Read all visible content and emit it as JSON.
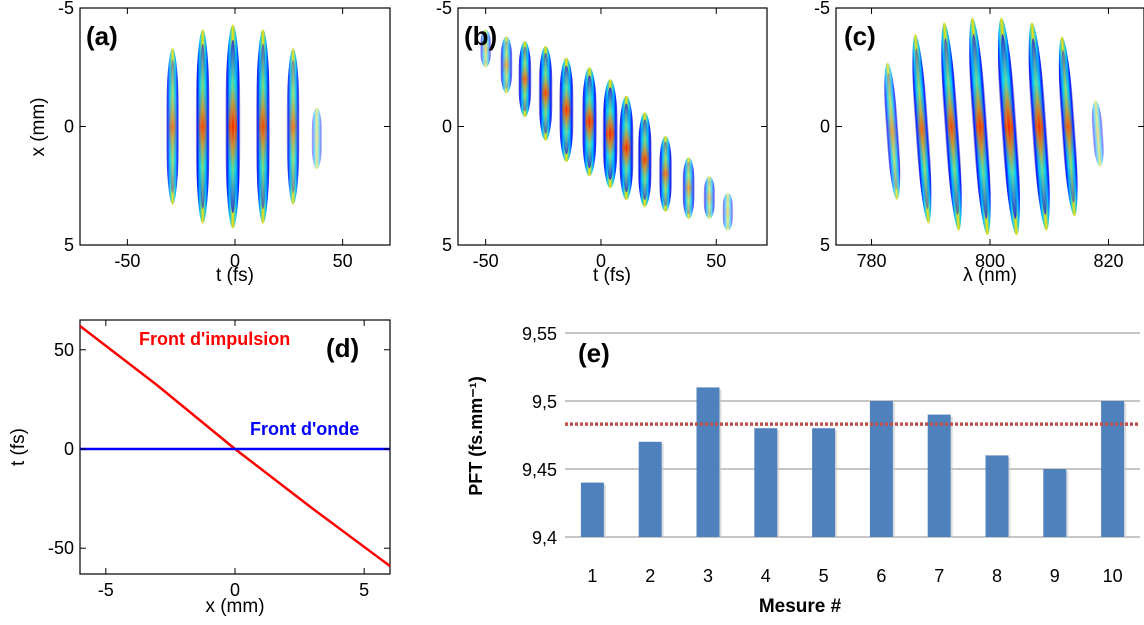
{
  "colors": {
    "red_front": "#ff0000",
    "blue_front": "#0000ff",
    "bar_fill": "#4f81bd",
    "mean_line": "#c0504d",
    "grid": "#8c8c8c"
  },
  "chart_data": [
    {
      "id": "a",
      "panel_label": "(a)",
      "type": "heatmap",
      "xlabel": "t (fs)",
      "ylabel": "x (mm)",
      "xlim": [
        -72,
        72
      ],
      "ylim": [
        -5,
        5
      ],
      "y_reversed": true,
      "xticks": [
        -50,
        0,
        50
      ],
      "yticks": [
        -5,
        0,
        5
      ],
      "xtick_labels": [
        "-50",
        "0",
        "50"
      ],
      "ytick_labels": [
        "-5",
        "0",
        "5"
      ],
      "fringes": [
        {
          "t": -29,
          "x": 0,
          "half_height": 3.3,
          "intensity": 0.55,
          "curve": 0
        },
        {
          "t": -15,
          "x": 0,
          "half_height": 4.1,
          "intensity": 0.72,
          "curve": 0
        },
        {
          "t": -1,
          "x": 0,
          "half_height": 4.3,
          "intensity": 0.92,
          "curve": 0
        },
        {
          "t": 13,
          "x": 0,
          "half_height": 4.1,
          "intensity": 0.72,
          "curve": 0
        },
        {
          "t": 27,
          "x": 0,
          "half_height": 3.3,
          "intensity": 0.55,
          "curve": 0
        },
        {
          "t": 38,
          "x": 0.5,
          "half_height": 1.3,
          "intensity": 0.15,
          "curve": 0
        }
      ]
    },
    {
      "id": "b",
      "panel_label": "(b)",
      "type": "heatmap",
      "xlabel": "t (fs)",
      "ylabel": "",
      "xlim": [
        -62,
        72
      ],
      "ylim": [
        -5,
        5
      ],
      "y_reversed": true,
      "xticks": [
        -50,
        0,
        50
      ],
      "yticks": [
        -5,
        0,
        5
      ],
      "xtick_labels": [
        "-50",
        "0",
        "50"
      ],
      "ytick_labels": [
        "-5",
        "0",
        "5"
      ],
      "fringes": [
        {
          "t": -50,
          "x": -3.3,
          "half_height": 0.8,
          "intensity": 0.25,
          "curve": 0
        },
        {
          "t": -41,
          "x": -2.6,
          "half_height": 1.2,
          "intensity": 0.42,
          "curve": 0
        },
        {
          "t": -33,
          "x": -2.0,
          "half_height": 1.6,
          "intensity": 0.6,
          "curve": 0
        },
        {
          "t": -24,
          "x": -1.4,
          "half_height": 2.0,
          "intensity": 0.72,
          "curve": 0
        },
        {
          "t": -15,
          "x": -0.7,
          "half_height": 2.2,
          "intensity": 0.82,
          "curve": 0
        },
        {
          "t": -5,
          "x": -0.2,
          "half_height": 2.3,
          "intensity": 0.9,
          "curve": 0
        },
        {
          "t": 4,
          "x": 0.3,
          "half_height": 2.3,
          "intensity": 0.95,
          "curve": 0
        },
        {
          "t": 11,
          "x": 0.9,
          "half_height": 2.2,
          "intensity": 0.85,
          "curve": 0
        },
        {
          "t": 19,
          "x": 1.4,
          "half_height": 2.0,
          "intensity": 0.75,
          "curve": 0
        },
        {
          "t": 28,
          "x": 2.0,
          "half_height": 1.6,
          "intensity": 0.58,
          "curve": 0
        },
        {
          "t": 38,
          "x": 2.6,
          "half_height": 1.3,
          "intensity": 0.45,
          "curve": 0
        },
        {
          "t": 47,
          "x": 3.0,
          "half_height": 0.9,
          "intensity": 0.32,
          "curve": 0
        },
        {
          "t": 55,
          "x": 3.6,
          "half_height": 0.8,
          "intensity": 0.2,
          "curve": 0
        }
      ]
    },
    {
      "id": "c",
      "panel_label": "(c)",
      "type": "heatmap",
      "xlabel": "λ (nm)",
      "ylabel": "",
      "xlim": [
        774,
        826
      ],
      "ylim": [
        -5,
        5
      ],
      "y_reversed": true,
      "xticks": [
        780,
        800,
        820
      ],
      "yticks": [
        -5,
        0,
        5
      ],
      "xtick_labels": [
        "780",
        "800",
        "820"
      ],
      "ytick_labels": [
        "-5",
        "0",
        "5"
      ],
      "fringes": [
        {
          "t": 783.5,
          "x": 0.2,
          "half_height": 2.9,
          "intensity": 0.45,
          "curve": 1.0
        },
        {
          "t": 788.5,
          "x": 0.1,
          "half_height": 4.0,
          "intensity": 0.6,
          "curve": 1.0
        },
        {
          "t": 793.5,
          "x": 0.0,
          "half_height": 4.4,
          "intensity": 0.72,
          "curve": 1.0
        },
        {
          "t": 798.3,
          "x": 0.0,
          "half_height": 4.6,
          "intensity": 0.85,
          "curve": 1.0
        },
        {
          "t": 803.2,
          "x": 0.0,
          "half_height": 4.6,
          "intensity": 0.97,
          "curve": 1.0
        },
        {
          "t": 808.3,
          "x": 0.0,
          "half_height": 4.4,
          "intensity": 0.88,
          "curve": 1.0
        },
        {
          "t": 813.2,
          "x": 0.0,
          "half_height": 3.8,
          "intensity": 0.65,
          "curve": 1.0
        },
        {
          "t": 818.2,
          "x": 0.3,
          "half_height": 1.4,
          "intensity": 0.18,
          "curve": 1.0
        }
      ]
    },
    {
      "id": "d",
      "panel_label": "(d)",
      "type": "line",
      "xlabel": "x (mm)",
      "ylabel": "t (fs)",
      "xlim": [
        -6,
        6
      ],
      "ylim": [
        -63,
        65
      ],
      "xticks": [
        -5,
        0,
        5
      ],
      "yticks": [
        -50,
        0,
        50
      ],
      "xtick_labels": [
        "-5",
        "0",
        "5"
      ],
      "ytick_labels": [
        "-50",
        "0",
        "50"
      ],
      "series": [
        {
          "name": "Front d'impulsion",
          "color": "#ff0000",
          "x": [
            -6,
            -3,
            0,
            3,
            6
          ],
          "y": [
            62,
            32,
            0,
            -30,
            -59
          ]
        },
        {
          "name": "Front d'onde",
          "color": "#0000ff",
          "x": [
            -6,
            6
          ],
          "y": [
            0,
            0
          ]
        }
      ]
    },
    {
      "id": "e",
      "panel_label": "(e)",
      "type": "bar",
      "xlabel": "Mesure #",
      "ylabel": "PFT (fs.mm⁻¹)",
      "ylim": [
        9.4,
        9.55
      ],
      "yticks": [
        9.4,
        9.45,
        9.5,
        9.55
      ],
      "ytick_labels": [
        "9,4",
        "9,45",
        "9,5",
        "9,55"
      ],
      "categories": [
        "1",
        "2",
        "3",
        "4",
        "5",
        "6",
        "7",
        "8",
        "9",
        "10"
      ],
      "values": [
        9.44,
        9.47,
        9.51,
        9.48,
        9.48,
        9.5,
        9.49,
        9.46,
        9.45,
        9.5
      ],
      "mean_line": 9.483
    }
  ]
}
